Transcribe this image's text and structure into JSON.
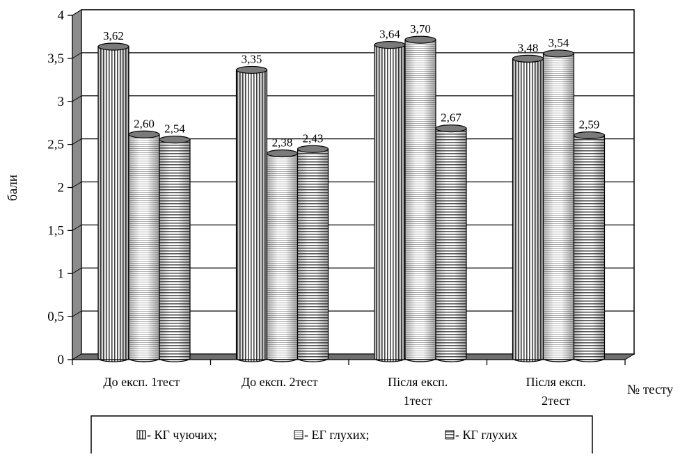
{
  "chart_data": {
    "type": "bar",
    "title": "",
    "xlabel": "№ тесту",
    "ylabel": "бали",
    "ylim": [
      0,
      4
    ],
    "yticks": [
      0,
      0.5,
      1,
      1.5,
      2,
      2.5,
      3,
      3.5,
      4
    ],
    "ytick_labels": [
      "0",
      "0,5",
      "1",
      "1,5",
      "2",
      "2,5",
      "3",
      "3,5",
      "4"
    ],
    "grid": true,
    "legend_position": "bottom",
    "categories": [
      [
        "До експ. 1тест"
      ],
      [
        "До експ. 2тест"
      ],
      [
        "Після експ.",
        "1тест"
      ],
      [
        "Після експ.",
        "2тест"
      ]
    ],
    "series": [
      {
        "name": "- КГ чуючих;",
        "pattern": "vertical",
        "values": [
          3.62,
          3.35,
          3.64,
          3.48
        ],
        "labels": [
          "3,62",
          "3,35",
          "3,64",
          "3,48"
        ]
      },
      {
        "name": "- ЕГ глухих;",
        "pattern": "fine-horizontal",
        "values": [
          2.6,
          2.38,
          3.7,
          3.54
        ],
        "labels": [
          "2,60",
          "2,38",
          "3,70",
          "3,54"
        ]
      },
      {
        "name": "- КГ глухих",
        "pattern": "horizontal",
        "values": [
          2.54,
          2.43,
          2.67,
          2.59
        ],
        "labels": [
          "2,54",
          "2,43",
          "2,67",
          "2,59"
        ]
      }
    ]
  }
}
